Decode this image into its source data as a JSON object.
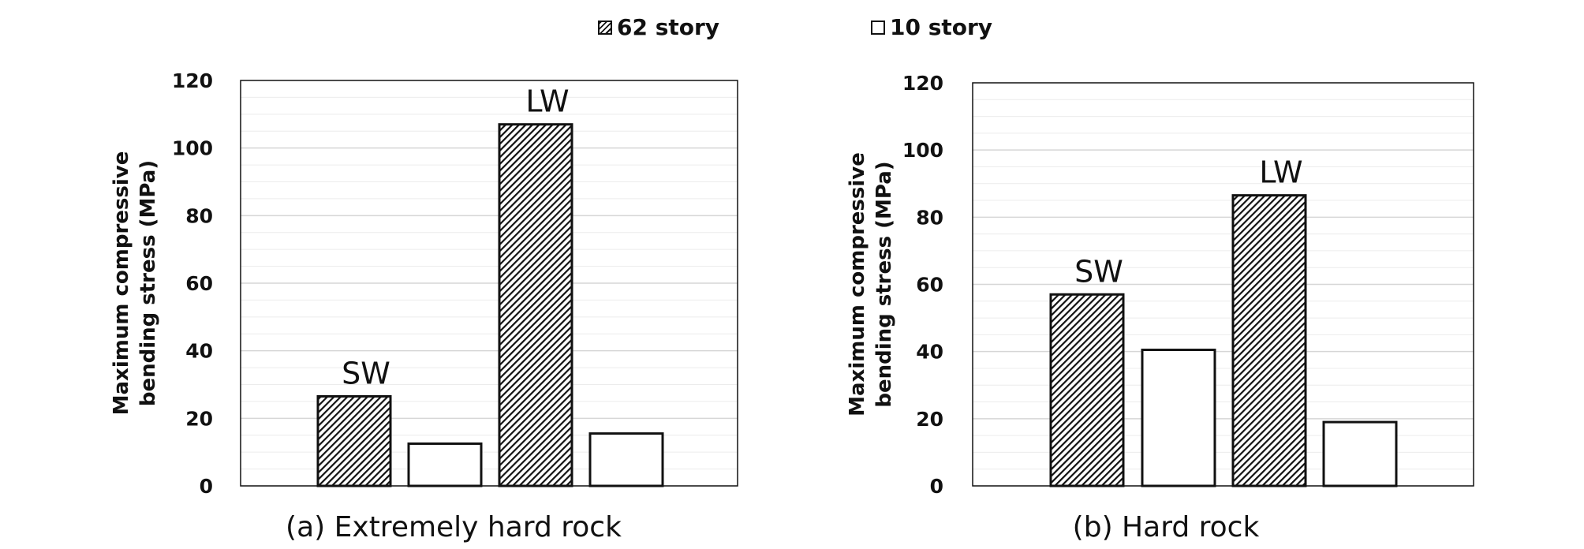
{
  "legend": [
    {
      "label": "62 story",
      "style": "hatched"
    },
    {
      "label": "10 story",
      "style": "white"
    }
  ],
  "colors": {
    "bar_stroke": "#111111",
    "hatch": "#111111",
    "white_fill": "#ffffff",
    "grid": "#e4e4e4"
  },
  "chart_data": [
    {
      "type": "bar",
      "caption": "(a) Extremely hard rock",
      "ylabel_lines": [
        "Maximum compressive",
        "bending stress (MPa)"
      ],
      "xlabel": "",
      "ylim": [
        0,
        120
      ],
      "yticks": [
        0,
        20,
        40,
        60,
        80,
        100,
        120
      ],
      "grid": true,
      "categories": [
        "SW",
        "LW"
      ],
      "series": [
        {
          "name": "62 story",
          "values": [
            26.5,
            107
          ]
        },
        {
          "name": "10 story",
          "values": [
            12.5,
            15.5
          ]
        }
      ],
      "annotations": [
        "SW",
        "LW"
      ]
    },
    {
      "type": "bar",
      "caption": "(b) Hard rock",
      "ylabel_lines": [
        "Maximum compressive",
        "bending stress (MPa)"
      ],
      "xlabel": "",
      "ylim": [
        0,
        120
      ],
      "yticks": [
        0,
        20,
        40,
        60,
        80,
        100,
        120
      ],
      "grid": true,
      "categories": [
        "SW",
        "LW"
      ],
      "series": [
        {
          "name": "62 story",
          "values": [
            57,
            86.5
          ]
        },
        {
          "name": "10 story",
          "values": [
            40.5,
            19
          ]
        }
      ],
      "annotations": [
        "SW",
        "LW"
      ]
    }
  ]
}
